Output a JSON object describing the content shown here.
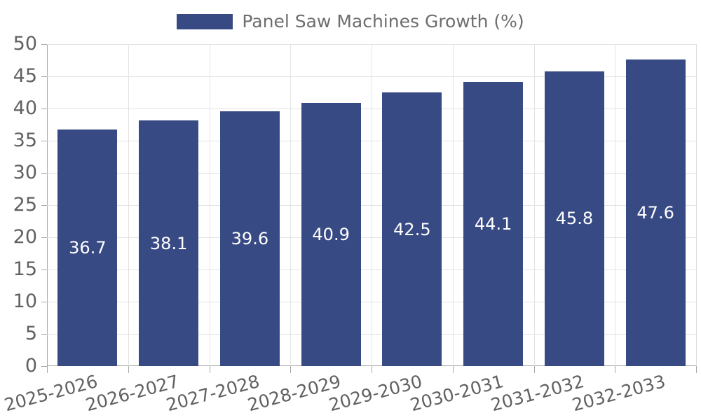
{
  "legend": {
    "label": "Panel Saw Machines Growth (%)",
    "position": "top-center"
  },
  "chart_data": {
    "type": "bar",
    "title": "Panel Saw Machines Growth (%)",
    "categories": [
      "2025-2026",
      "2026-2027",
      "2027-2028",
      "2028-2029",
      "2029-2030",
      "2030-2031",
      "2031-2032",
      "2032-2033"
    ],
    "values": [
      36.7,
      38.1,
      39.6,
      40.9,
      42.5,
      44.1,
      45.8,
      47.6
    ],
    "value_labels": [
      "36.7",
      "38.1",
      "39.6",
      "40.9",
      "42.5",
      "44.1",
      "45.8",
      "47.6"
    ],
    "xlabel": "",
    "ylabel": "",
    "ylim": [
      0,
      50
    ],
    "yticks": [
      0,
      5,
      10,
      15,
      20,
      25,
      30,
      35,
      40,
      45,
      50
    ],
    "grid": true,
    "legend_position": "top-center",
    "xtick_rotation_deg": 15
  },
  "colors": {
    "bar": "#384a84",
    "bar_label": "#ffffff",
    "axis_text": "#616161",
    "legend_text": "#6e6e6e",
    "grid_line": "#e3e3e3",
    "axis_line": "#a8a8a8",
    "right_border": "#dcdcdc"
  }
}
